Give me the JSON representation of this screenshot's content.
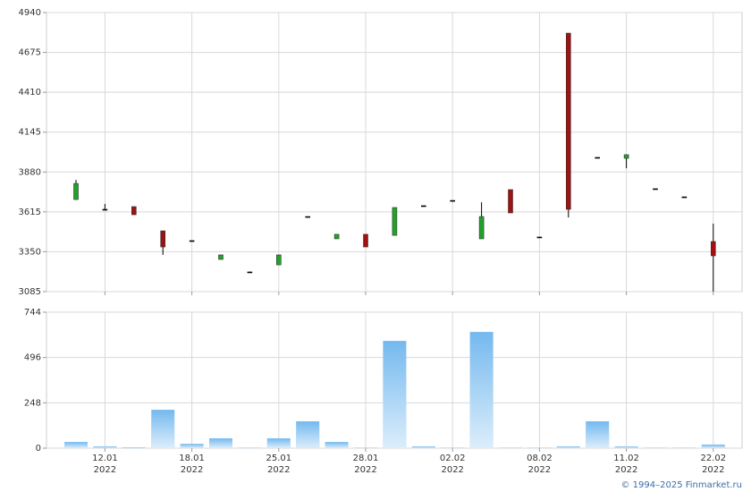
{
  "chart_data": [
    {
      "type": "candlestick",
      "categories": [
        null,
        "12.01",
        null,
        null,
        "18.01",
        null,
        null,
        "25.01",
        null,
        null,
        "28.01",
        null,
        null,
        "02.02",
        null,
        null,
        "08.02",
        null,
        null,
        "11.02",
        null,
        null,
        "22.02"
      ],
      "category_years": [
        null,
        "2022",
        null,
        null,
        "2022",
        null,
        null,
        "2022",
        null,
        null,
        "2022",
        null,
        null,
        "2022",
        null,
        null,
        "2022",
        null,
        null,
        "2022",
        null,
        null,
        "2022"
      ],
      "open": [
        3697,
        3632,
        3650,
        3489,
        3424,
        3299,
        3216,
        3263,
        3584,
        3436,
        3466,
        3459,
        3656,
        3691,
        3436,
        3763,
        3448,
        4803,
        3977,
        3971,
        3769,
        3715,
        3418
      ],
      "high": [
        3828,
        3668,
        3650,
        3489,
        3424,
        3329,
        3216,
        3329,
        3584,
        3466,
        3466,
        3644,
        3656,
        3691,
        3679,
        3763,
        3448,
        4803,
        3977,
        3995,
        3769,
        3715,
        3537
      ],
      "low": [
        3697,
        3632,
        3596,
        3329,
        3424,
        3299,
        3216,
        3263,
        3584,
        3436,
        3382,
        3459,
        3656,
        3691,
        3436,
        3608,
        3448,
        3578,
        3977,
        3905,
        3769,
        3715,
        3085
      ],
      "close": [
        3804,
        3632,
        3596,
        3382,
        3424,
        3329,
        3216,
        3329,
        3584,
        3466,
        3382,
        3644,
        3656,
        3691,
        3584,
        3608,
        3448,
        3632,
        3977,
        3995,
        3769,
        3715,
        3323
      ],
      "up_color": "#22a22a",
      "down_color": "#a3100f",
      "flat_color": "#000000",
      "ylim": [
        3085,
        4940
      ],
      "yticks": [
        3085,
        3350,
        3615,
        3880,
        4145,
        4410,
        4675,
        4940
      ],
      "grid": true
    },
    {
      "type": "bar",
      "values": [
        34,
        10,
        5,
        210,
        24,
        54,
        3,
        54,
        147,
        34,
        3,
        587,
        10,
        3,
        636,
        3,
        3,
        10,
        147,
        10,
        3,
        3,
        20
      ],
      "color": "#74b9ef",
      "ylim": [
        0,
        744
      ],
      "yticks": [
        0,
        248,
        496,
        744
      ],
      "grid": true
    }
  ],
  "footer": {
    "copyright": "© 1994–2025 Finmarket.ru"
  }
}
